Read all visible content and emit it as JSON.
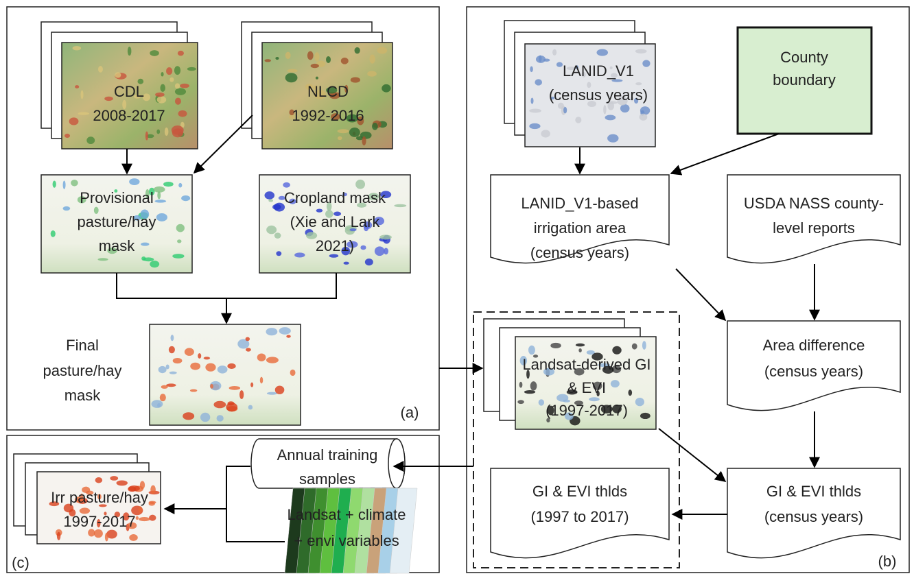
{
  "panel_a": {
    "label": "(a)",
    "cdl": [
      "CDL",
      "2008-2017"
    ],
    "nlcd": [
      "NLCD",
      "1992-2016"
    ],
    "provisional_mask": [
      "Provisional",
      "pasture/hay",
      "mask"
    ],
    "cropland_mask": [
      "Cropland mask",
      "(Xie and Lark",
      "2021)"
    ],
    "final_mask": [
      "Final",
      "pasture/hay",
      "mask"
    ]
  },
  "panel_b": {
    "label": "(b)",
    "lanid": [
      "LANID_V1",
      "(census years)"
    ],
    "county": [
      "County",
      "boundary"
    ],
    "lanid_area": [
      "LANID_V1-based",
      "irrigation area",
      "(census years)"
    ],
    "nass": [
      "USDA NASS county-",
      "level reports"
    ],
    "area_difference": [
      "Area difference",
      "(census years)"
    ],
    "thlds_census": [
      "GI & EVI  thlds",
      "(census years)"
    ],
    "thlds_annual": [
      "GI & EVI  thlds",
      "(1997 to 2017)"
    ],
    "landsat_gi_evi": [
      "Landsat-derived GI",
      "& EVI",
      "(1997-2017)"
    ]
  },
  "panel_c": {
    "label": "(c)",
    "training": [
      "Annual training",
      "samples"
    ],
    "variables": [
      "Landsat + climate",
      "+ envi variables"
    ],
    "irr_map": [
      "Irr pasture/hay",
      "1997-2017"
    ]
  }
}
